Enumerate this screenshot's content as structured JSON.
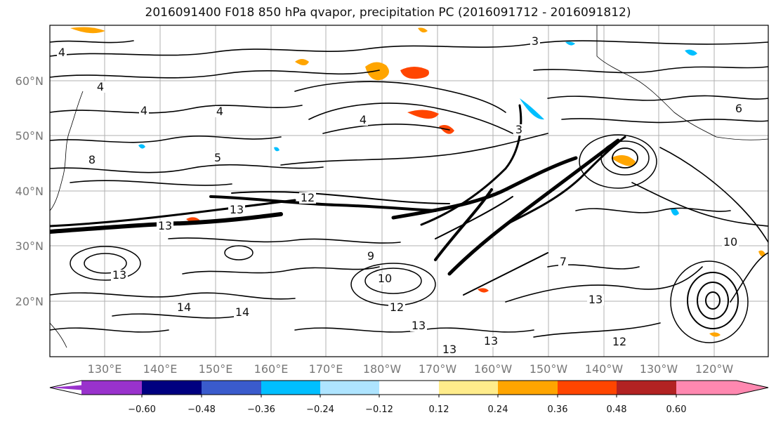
{
  "title": "2016091400 F018 850 hPa qvapor, precipitation PC (2016091712 - 2016091812)",
  "map": {
    "lon_labels": [
      "130°E",
      "140°E",
      "150°E",
      "160°E",
      "170°E",
      "180°W",
      "170°W",
      "160°W",
      "150°W",
      "140°W",
      "130°W",
      "120°W"
    ],
    "lat_labels": [
      "60°N",
      "50°N",
      "40°N",
      "30°N",
      "20°N"
    ],
    "grid": true,
    "contour_labels": [
      "4",
      "4",
      "4",
      "3",
      "4",
      "4",
      "3",
      "6",
      "5",
      "8",
      "12",
      "13",
      "13",
      "13",
      "10",
      "12",
      "14",
      "14",
      "13",
      "13",
      "12",
      "13",
      "10",
      "13",
      "7",
      "9"
    ]
  },
  "colorbar": {
    "ticks": [
      "−0.60",
      "−0.48",
      "−0.36",
      "−0.24",
      "−0.12",
      "0.12",
      "0.24",
      "0.36",
      "0.48",
      "0.60"
    ],
    "colors": [
      "#9932cc",
      "#000080",
      "#3a5bcc",
      "#00bfff",
      "#aee4ff",
      "#ffffff",
      "#ffec8b",
      "#ffa500",
      "#ff4500",
      "#b22222",
      "#ff88b0"
    ]
  },
  "chart_data": {
    "type": "heatmap",
    "title": "2016091400 F018 850 hPa qvapor, precipitation PC (2016091712 - 2016091812)",
    "xlabel": "",
    "ylabel": "",
    "x_ticks": [
      "130°E",
      "140°E",
      "150°E",
      "160°E",
      "170°E",
      "180°W",
      "170°W",
      "160°W",
      "150°W",
      "140°W",
      "130°W",
      "120°W"
    ],
    "y_ticks": [
      "60°N",
      "50°N",
      "40°N",
      "30°N",
      "20°N"
    ],
    "colorbar_ticks": [
      -0.6,
      -0.48,
      -0.36,
      -0.24,
      -0.12,
      0.12,
      0.24,
      0.36,
      0.48,
      0.6
    ],
    "grid": true
  }
}
